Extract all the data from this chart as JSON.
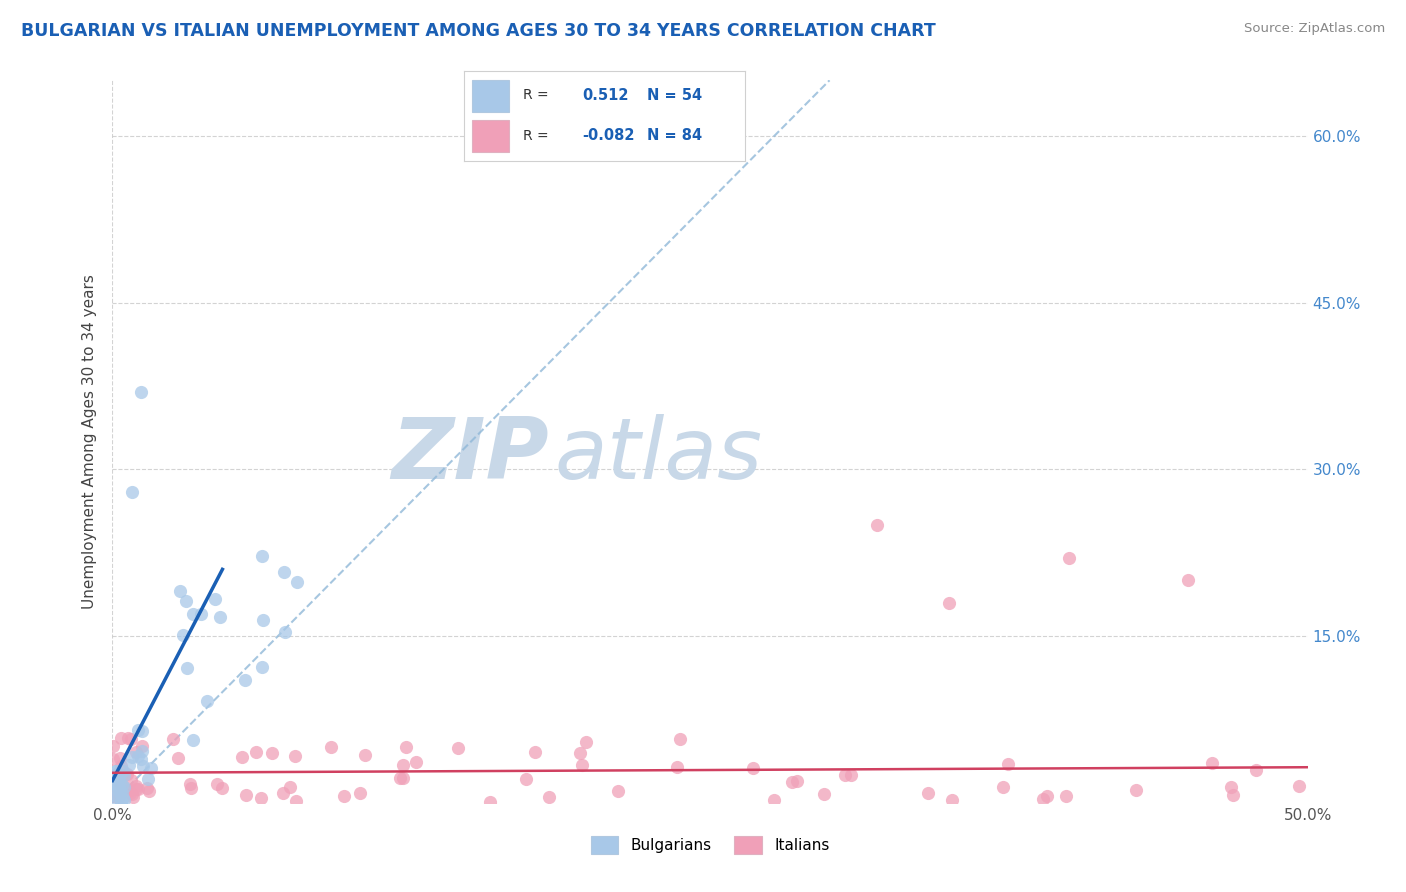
{
  "title": "BULGARIAN VS ITALIAN UNEMPLOYMENT AMONG AGES 30 TO 34 YEARS CORRELATION CHART",
  "source": "Source: ZipAtlas.com",
  "ylabel": "Unemployment Among Ages 30 to 34 years",
  "xlim": [
    0.0,
    0.5
  ],
  "ylim": [
    0.0,
    0.65
  ],
  "bulgarian_R": 0.512,
  "bulgarian_N": 54,
  "italian_R": -0.082,
  "italian_N": 84,
  "bulgarian_color": "#a8c8e8",
  "italian_color": "#f0a0b8",
  "bulgarian_line_color": "#1a5fb4",
  "italian_line_color": "#d04060",
  "diagonal_color": "#90b8d8",
  "background_color": "#ffffff",
  "grid_color": "#c8c8c8",
  "title_color": "#1a5fb4",
  "axis_label_color": "#4488cc",
  "source_color": "#888888"
}
